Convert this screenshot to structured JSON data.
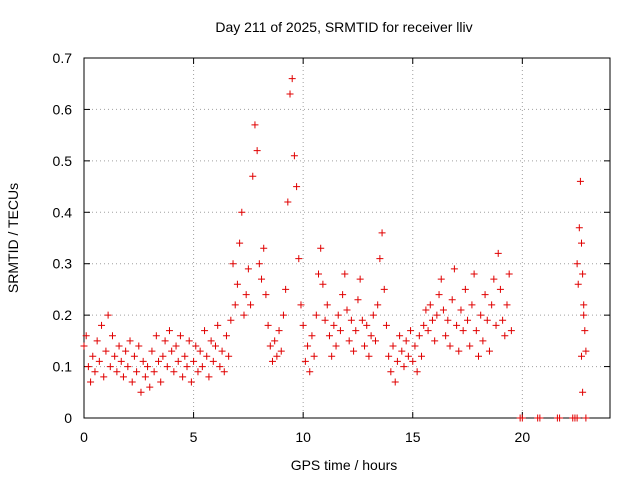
{
  "chart_data": {
    "type": "scatter",
    "title": "Day 211 of 2025, SRMTID for receiver lliv",
    "xlabel": "GPS time / hours",
    "ylabel": "SRMTID / TECUs",
    "xlim": [
      0,
      24
    ],
    "ylim": [
      0,
      0.7
    ],
    "xticks": [
      0,
      5,
      10,
      15,
      20
    ],
    "xtick_labels": [
      "0",
      "5",
      "10",
      "15",
      "20"
    ],
    "yticks": [
      0,
      0.1,
      0.2,
      0.3,
      0.4,
      0.5,
      0.6,
      0.7
    ],
    "ytick_labels": [
      "0",
      "0.1",
      "0.2",
      "0.3",
      "0.4",
      "0.5",
      "0.6",
      "0.7"
    ],
    "grid": true,
    "marker": "+",
    "color": "#e00000",
    "series": [
      {
        "name": "SRMTID",
        "points": [
          [
            0.0,
            0.14
          ],
          [
            0.1,
            0.16
          ],
          [
            0.2,
            0.1
          ],
          [
            0.3,
            0.07
          ],
          [
            0.4,
            0.12
          ],
          [
            0.5,
            0.09
          ],
          [
            0.6,
            0.15
          ],
          [
            0.7,
            0.11
          ],
          [
            0.8,
            0.18
          ],
          [
            0.9,
            0.08
          ],
          [
            1.0,
            0.13
          ],
          [
            1.1,
            0.2
          ],
          [
            1.2,
            0.1
          ],
          [
            1.3,
            0.16
          ],
          [
            1.4,
            0.12
          ],
          [
            1.5,
            0.09
          ],
          [
            1.6,
            0.14
          ],
          [
            1.7,
            0.11
          ],
          [
            1.8,
            0.08
          ],
          [
            1.9,
            0.13
          ],
          [
            2.0,
            0.1
          ],
          [
            2.1,
            0.15
          ],
          [
            2.2,
            0.07
          ],
          [
            2.3,
            0.12
          ],
          [
            2.4,
            0.09
          ],
          [
            2.5,
            0.14
          ],
          [
            2.6,
            0.05
          ],
          [
            2.7,
            0.11
          ],
          [
            2.8,
            0.08
          ],
          [
            2.9,
            0.1
          ],
          [
            3.0,
            0.06
          ],
          [
            3.1,
            0.13
          ],
          [
            3.2,
            0.09
          ],
          [
            3.3,
            0.16
          ],
          [
            3.4,
            0.11
          ],
          [
            3.5,
            0.07
          ],
          [
            3.6,
            0.12
          ],
          [
            3.7,
            0.15
          ],
          [
            3.8,
            0.1
          ],
          [
            3.9,
            0.17
          ],
          [
            4.0,
            0.13
          ],
          [
            4.1,
            0.09
          ],
          [
            4.2,
            0.14
          ],
          [
            4.3,
            0.11
          ],
          [
            4.4,
            0.16
          ],
          [
            4.5,
            0.08
          ],
          [
            4.6,
            0.12
          ],
          [
            4.7,
            0.1
          ],
          [
            4.8,
            0.15
          ],
          [
            4.9,
            0.07
          ],
          [
            5.0,
            0.11
          ],
          [
            5.1,
            0.14
          ],
          [
            5.2,
            0.09
          ],
          [
            5.3,
            0.13
          ],
          [
            5.4,
            0.1
          ],
          [
            5.5,
            0.17
          ],
          [
            5.6,
            0.12
          ],
          [
            5.7,
            0.08
          ],
          [
            5.8,
            0.15
          ],
          [
            5.9,
            0.11
          ],
          [
            6.0,
            0.14
          ],
          [
            6.1,
            0.18
          ],
          [
            6.2,
            0.1
          ],
          [
            6.3,
            0.13
          ],
          [
            6.4,
            0.09
          ],
          [
            6.5,
            0.16
          ],
          [
            6.6,
            0.12
          ],
          [
            6.7,
            0.19
          ],
          [
            6.8,
            0.3
          ],
          [
            6.9,
            0.22
          ],
          [
            7.0,
            0.26
          ],
          [
            7.1,
            0.34
          ],
          [
            7.2,
            0.4
          ],
          [
            7.3,
            0.2
          ],
          [
            7.4,
            0.24
          ],
          [
            7.5,
            0.29
          ],
          [
            7.6,
            0.22
          ],
          [
            7.7,
            0.47
          ],
          [
            7.8,
            0.57
          ],
          [
            7.9,
            0.52
          ],
          [
            8.0,
            0.3
          ],
          [
            8.1,
            0.27
          ],
          [
            8.2,
            0.33
          ],
          [
            8.3,
            0.24
          ],
          [
            8.4,
            0.18
          ],
          [
            8.5,
            0.14
          ],
          [
            8.6,
            0.11
          ],
          [
            8.7,
            0.15
          ],
          [
            8.8,
            0.12
          ],
          [
            8.9,
            0.17
          ],
          [
            9.0,
            0.13
          ],
          [
            9.1,
            0.2
          ],
          [
            9.2,
            0.25
          ],
          [
            9.3,
            0.42
          ],
          [
            9.4,
            0.63
          ],
          [
            9.5,
            0.66
          ],
          [
            9.6,
            0.51
          ],
          [
            9.7,
            0.45
          ],
          [
            9.8,
            0.31
          ],
          [
            9.9,
            0.22
          ],
          [
            10.0,
            0.18
          ],
          [
            10.1,
            0.11
          ],
          [
            10.2,
            0.14
          ],
          [
            10.3,
            0.09
          ],
          [
            10.4,
            0.16
          ],
          [
            10.5,
            0.12
          ],
          [
            10.6,
            0.2
          ],
          [
            10.7,
            0.28
          ],
          [
            10.8,
            0.33
          ],
          [
            10.9,
            0.26
          ],
          [
            11.0,
            0.19
          ],
          [
            11.1,
            0.22
          ],
          [
            11.2,
            0.16
          ],
          [
            11.3,
            0.12
          ],
          [
            11.4,
            0.18
          ],
          [
            11.5,
            0.14
          ],
          [
            11.6,
            0.2
          ],
          [
            11.7,
            0.17
          ],
          [
            11.8,
            0.24
          ],
          [
            11.9,
            0.28
          ],
          [
            12.0,
            0.21
          ],
          [
            12.1,
            0.15
          ],
          [
            12.2,
            0.19
          ],
          [
            12.3,
            0.13
          ],
          [
            12.4,
            0.17
          ],
          [
            12.5,
            0.23
          ],
          [
            12.6,
            0.27
          ],
          [
            12.7,
            0.19
          ],
          [
            12.8,
            0.14
          ],
          [
            12.9,
            0.18
          ],
          [
            13.0,
            0.12
          ],
          [
            13.1,
            0.16
          ],
          [
            13.2,
            0.2
          ],
          [
            13.3,
            0.15
          ],
          [
            13.4,
            0.22
          ],
          [
            13.5,
            0.31
          ],
          [
            13.6,
            0.36
          ],
          [
            13.7,
            0.25
          ],
          [
            13.8,
            0.18
          ],
          [
            13.9,
            0.12
          ],
          [
            14.0,
            0.09
          ],
          [
            14.1,
            0.14
          ],
          [
            14.2,
            0.07
          ],
          [
            14.3,
            0.11
          ],
          [
            14.4,
            0.16
          ],
          [
            14.5,
            0.13
          ],
          [
            14.6,
            0.1
          ],
          [
            14.7,
            0.15
          ],
          [
            14.8,
            0.12
          ],
          [
            14.9,
            0.17
          ],
          [
            15.0,
            0.11
          ],
          [
            15.1,
            0.14
          ],
          [
            15.2,
            0.09
          ],
          [
            15.3,
            0.16
          ],
          [
            15.4,
            0.12
          ],
          [
            15.5,
            0.18
          ],
          [
            15.6,
            0.21
          ],
          [
            15.7,
            0.17
          ],
          [
            15.8,
            0.22
          ],
          [
            15.9,
            0.19
          ],
          [
            16.0,
            0.15
          ],
          [
            16.1,
            0.2
          ],
          [
            16.2,
            0.24
          ],
          [
            16.3,
            0.27
          ],
          [
            16.4,
            0.21
          ],
          [
            16.5,
            0.16
          ],
          [
            16.6,
            0.19
          ],
          [
            16.7,
            0.14
          ],
          [
            16.8,
            0.23
          ],
          [
            16.9,
            0.29
          ],
          [
            17.0,
            0.18
          ],
          [
            17.1,
            0.13
          ],
          [
            17.2,
            0.21
          ],
          [
            17.3,
            0.17
          ],
          [
            17.4,
            0.25
          ],
          [
            17.5,
            0.19
          ],
          [
            17.6,
            0.14
          ],
          [
            17.7,
            0.22
          ],
          [
            17.8,
            0.28
          ],
          [
            17.9,
            0.17
          ],
          [
            18.0,
            0.12
          ],
          [
            18.1,
            0.2
          ],
          [
            18.2,
            0.15
          ],
          [
            18.3,
            0.24
          ],
          [
            18.4,
            0.19
          ],
          [
            18.5,
            0.13
          ],
          [
            18.6,
            0.22
          ],
          [
            18.7,
            0.27
          ],
          [
            18.8,
            0.18
          ],
          [
            18.9,
            0.32
          ],
          [
            19.0,
            0.25
          ],
          [
            19.1,
            0.19
          ],
          [
            19.2,
            0.16
          ],
          [
            19.3,
            0.22
          ],
          [
            19.4,
            0.28
          ],
          [
            19.5,
            0.17
          ],
          [
            19.9,
            0.0
          ],
          [
            20.0,
            0.0
          ],
          [
            20.7,
            0.0
          ],
          [
            20.8,
            0.0
          ],
          [
            21.6,
            0.0
          ],
          [
            21.7,
            0.0
          ],
          [
            22.3,
            0.0
          ],
          [
            22.4,
            0.0
          ],
          [
            22.5,
            0.0
          ],
          [
            22.9,
            0.0
          ],
          [
            22.5,
            0.3
          ],
          [
            22.55,
            0.26
          ],
          [
            22.6,
            0.37
          ],
          [
            22.65,
            0.46
          ],
          [
            22.7,
            0.34
          ],
          [
            22.75,
            0.28
          ],
          [
            22.8,
            0.22
          ],
          [
            22.85,
            0.17
          ],
          [
            22.9,
            0.13
          ],
          [
            22.7,
            0.12
          ],
          [
            22.75,
            0.05
          ],
          [
            22.8,
            0.2
          ]
        ]
      }
    ]
  }
}
